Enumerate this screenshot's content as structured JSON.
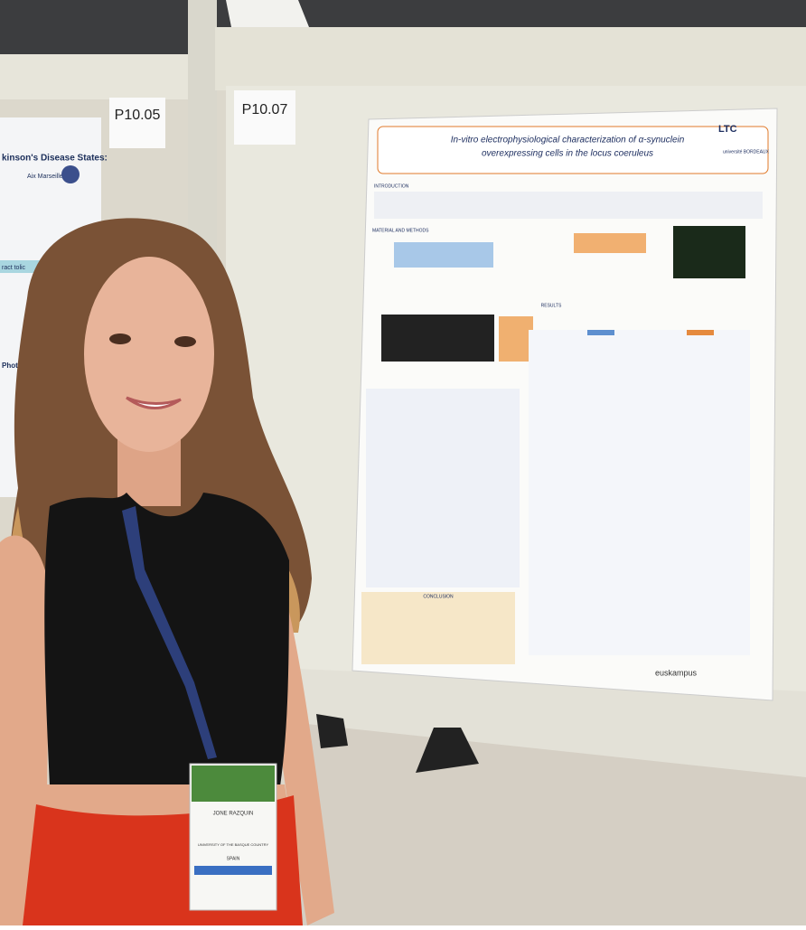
{
  "signs": [
    "P10.05",
    "P10.07"
  ],
  "left_poster": {
    "title": "kinson's Disease States:",
    "lines": [
      "Aix Marseille",
      "ract tolic",
      "Photoinhibitio"
    ]
  },
  "poster": {
    "title_line1": "In-vitro electrophysiological characterization of α-synuclein",
    "title_line2": "overexpressing cells in the locus coeruleus",
    "logo": "LTC",
    "right_logo": "université BORDEAUX",
    "sections": [
      "INTRODUCTION",
      "MATERIAL AND METHODS",
      "RESULTS",
      "CONCLUSION"
    ],
    "footer": "euskampus"
  },
  "badge": {
    "name": "JONE RAZQUIN",
    "org": "UNIVERSITY OF THE BASQUE COUNTRY",
    "country": "SPAIN"
  }
}
